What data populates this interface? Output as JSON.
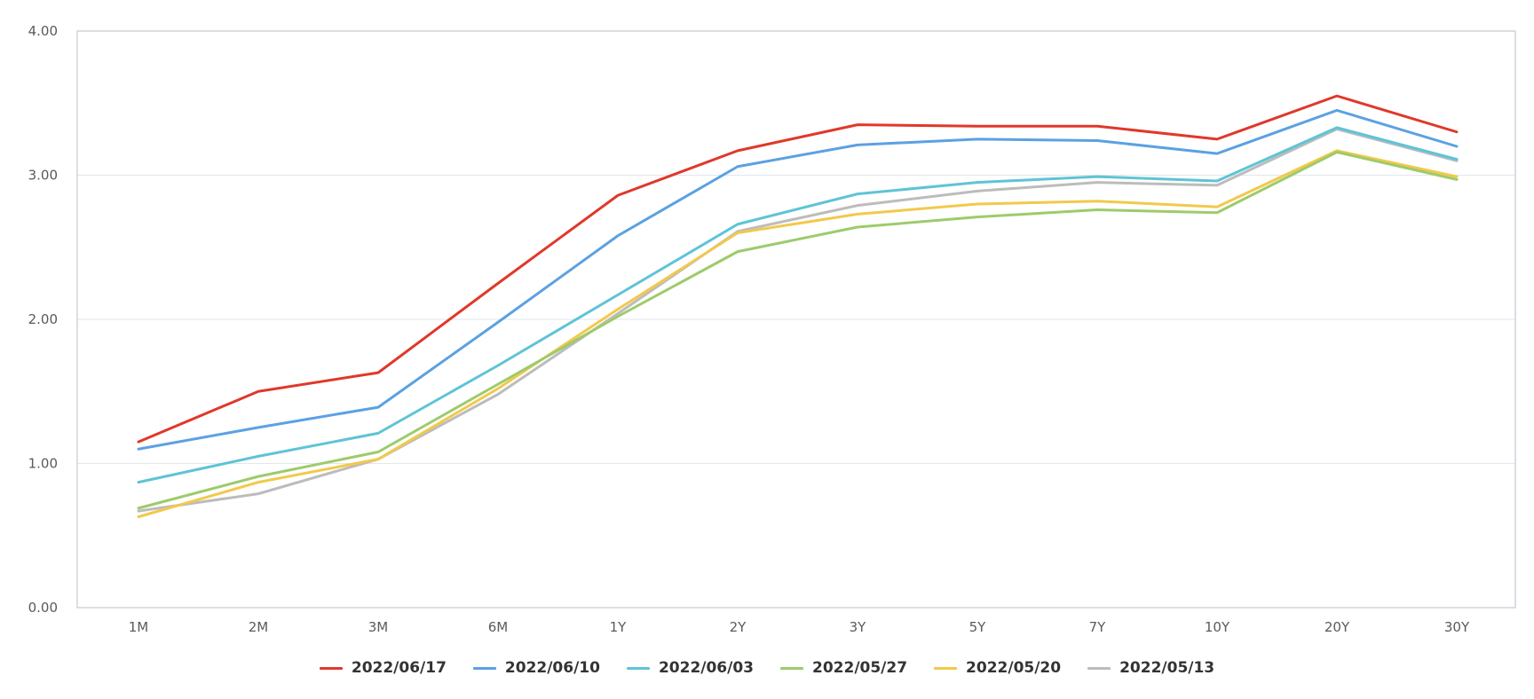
{
  "chart_data": {
    "type": "line",
    "categories": [
      "1M",
      "2M",
      "3M",
      "6M",
      "1Y",
      "2Y",
      "3Y",
      "5Y",
      "7Y",
      "10Y",
      "20Y",
      "30Y"
    ],
    "ylim": [
      0,
      4
    ],
    "yticks": [
      "0.00",
      "1.00",
      "2.00",
      "3.00",
      "4.00"
    ],
    "grid": true,
    "legend_position": "bottom",
    "series": [
      {
        "name": "2022/06/17",
        "color": "#e0382a",
        "values": [
          1.15,
          1.5,
          1.63,
          2.25,
          2.86,
          3.17,
          3.35,
          3.34,
          3.34,
          3.25,
          3.55,
          3.3
        ]
      },
      {
        "name": "2022/06/10",
        "color": "#5ba1e2",
        "values": [
          1.1,
          1.25,
          1.39,
          1.98,
          2.58,
          3.06,
          3.21,
          3.25,
          3.24,
          3.15,
          3.45,
          3.2
        ]
      },
      {
        "name": "2022/06/03",
        "color": "#5ec4d6",
        "values": [
          0.87,
          1.05,
          1.21,
          1.68,
          2.17,
          2.66,
          2.87,
          2.95,
          2.99,
          2.96,
          3.33,
          3.11
        ]
      },
      {
        "name": "2022/05/27",
        "color": "#9dcb6b",
        "values": [
          0.69,
          0.91,
          1.08,
          1.55,
          2.02,
          2.47,
          2.64,
          2.71,
          2.76,
          2.74,
          3.16,
          2.97
        ]
      },
      {
        "name": "2022/05/20",
        "color": "#f2c94c",
        "values": [
          0.63,
          0.87,
          1.03,
          1.52,
          2.07,
          2.6,
          2.73,
          2.8,
          2.82,
          2.78,
          3.17,
          2.99
        ]
      },
      {
        "name": "2022/05/13",
        "color": "#bcbcbc",
        "values": [
          0.67,
          0.79,
          1.03,
          1.48,
          2.04,
          2.61,
          2.79,
          2.89,
          2.95,
          2.93,
          3.32,
          3.1
        ]
      }
    ]
  }
}
